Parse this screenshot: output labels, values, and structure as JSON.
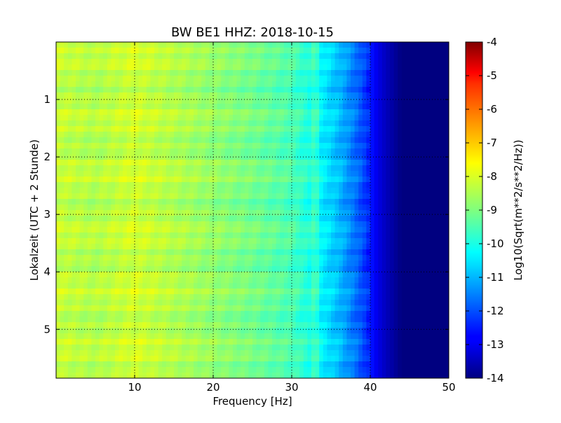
{
  "chart_data": {
    "type": "heatmap",
    "title": "BW BE1 HHZ: 2018-10-15",
    "xlabel": "Frequency [Hz]",
    "ylabel": "Lokalzeit (UTC + 2 Stunde)",
    "xlim": [
      0,
      50
    ],
    "ylim": [
      5.85,
      0
    ],
    "xticks": [
      "10",
      "20",
      "30",
      "40",
      "50"
    ],
    "yticks": [
      "1",
      "2",
      "3",
      "4",
      "5"
    ],
    "grid": true,
    "colormap": "jet",
    "colorbar": {
      "label": "Log10(Sqrt(m**2/s**2/Hz))",
      "range": [
        -14,
        -4
      ],
      "ticks": [
        "-4",
        "-5",
        "-6",
        "-7",
        "-8",
        "-9",
        "-10",
        "-11",
        "-12",
        "-13",
        "-14"
      ]
    },
    "frequency_profile": {
      "frequency_hz": [
        0,
        5,
        10,
        15,
        20,
        25,
        30,
        32,
        34,
        36,
        38,
        39,
        40,
        41,
        42,
        43,
        44,
        50
      ],
      "log10_amplitude": [
        -8.3,
        -8.5,
        -8.2,
        -8.5,
        -8.8,
        -9.1,
        -9.5,
        -9.9,
        -10.4,
        -10.9,
        -11.6,
        -12.0,
        -12.5,
        -13.0,
        -13.4,
        -13.7,
        -14.0,
        -14.0
      ]
    },
    "annotations": {
      "spectral_line_hz": 33,
      "background_level_above_44hz": -14
    }
  }
}
